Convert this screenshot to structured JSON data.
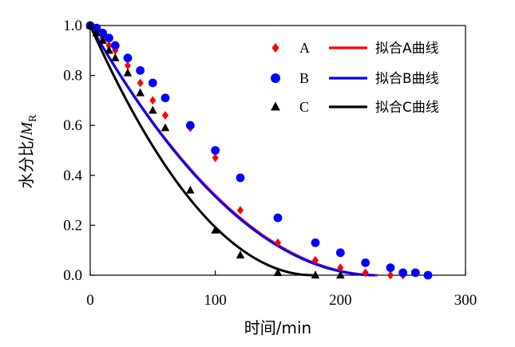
{
  "chart_data": {
    "type": "scatter",
    "xlabel": "时间/min",
    "ylabel": "水分比/M_R",
    "ylabel_main": "水分比/",
    "ylabel_italic": "M",
    "ylabel_sub": "R",
    "xlim": [
      0,
      300
    ],
    "ylim": [
      0,
      1.0
    ],
    "x_ticks": [
      "0",
      "100",
      "200",
      "300"
    ],
    "y_ticks": [
      "0.0",
      "0.2",
      "0.4",
      "0.6",
      "0.8",
      "1.0"
    ],
    "legend_position": "top-right",
    "series": [
      {
        "name": "A",
        "marker": "diamond",
        "color": "#ff0000",
        "x": [
          0,
          5,
          10,
          15,
          20,
          30,
          40,
          50,
          60,
          80,
          100,
          120,
          150,
          180,
          200,
          220,
          240,
          250
        ],
        "y": [
          1.0,
          0.98,
          0.95,
          0.92,
          0.9,
          0.84,
          0.77,
          0.7,
          0.64,
          0.59,
          0.47,
          0.26,
          0.13,
          0.06,
          0.03,
          0.01,
          0.0,
          0.0
        ]
      },
      {
        "name": "B",
        "marker": "circle",
        "color": "#0000ff",
        "x": [
          0,
          5,
          10,
          15,
          20,
          30,
          40,
          50,
          60,
          80,
          100,
          120,
          150,
          180,
          200,
          220,
          240,
          250,
          260,
          270
        ],
        "y": [
          1.0,
          0.99,
          0.97,
          0.95,
          0.92,
          0.87,
          0.82,
          0.77,
          0.71,
          0.6,
          0.5,
          0.39,
          0.23,
          0.13,
          0.09,
          0.05,
          0.03,
          0.01,
          0.01,
          0.0
        ]
      },
      {
        "name": "C",
        "marker": "triangle",
        "color": "#000000",
        "x": [
          0,
          5,
          10,
          15,
          20,
          30,
          40,
          50,
          60,
          80,
          100,
          120,
          150,
          180,
          200
        ],
        "y": [
          1.0,
          0.97,
          0.94,
          0.9,
          0.87,
          0.81,
          0.73,
          0.66,
          0.59,
          0.34,
          0.18,
          0.08,
          0.01,
          0.0,
          0.0
        ]
      }
    ],
    "fits": [
      {
        "name": "拟合A曲线",
        "color": "#ff0000",
        "end_x": 230
      },
      {
        "name": "拟合B曲线",
        "color": "#0000ff",
        "end_x": 228
      },
      {
        "name": "拟合C曲线",
        "color": "#000000",
        "end_x": 178
      }
    ]
  }
}
